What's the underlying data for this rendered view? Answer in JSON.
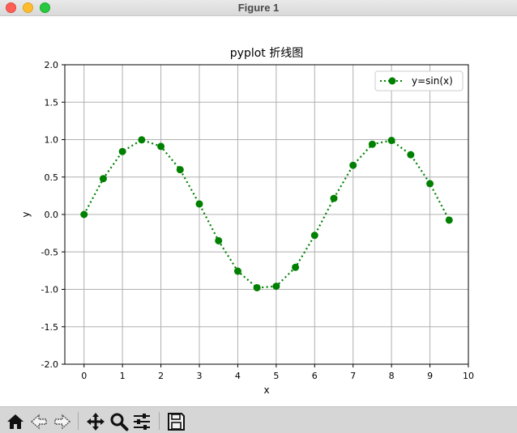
{
  "window": {
    "title": "Figure 1"
  },
  "toolbar": {
    "buttons": [
      {
        "name": "home-icon"
      },
      {
        "name": "back-icon"
      },
      {
        "name": "forward-icon"
      },
      {
        "name": "pan-icon"
      },
      {
        "name": "zoom-icon"
      },
      {
        "name": "configure-subplots-icon"
      },
      {
        "name": "save-icon"
      }
    ]
  },
  "chart_data": {
    "type": "line",
    "title": "pyplot 折线图",
    "xlabel": "x",
    "ylabel": "y",
    "xlim": [
      -0.5,
      10
    ],
    "ylim": [
      -2.0,
      2.0
    ],
    "xticks": [
      0,
      1,
      2,
      3,
      4,
      5,
      6,
      7,
      8,
      9,
      10
    ],
    "yticks": [
      2.0,
      1.5,
      1.0,
      0.5,
      0.0,
      -0.5,
      -1.0,
      -1.5,
      -2.0
    ],
    "xtick_labels": [
      "0",
      "1",
      "2",
      "3",
      "4",
      "5",
      "6",
      "7",
      "8",
      "9",
      "10"
    ],
    "ytick_labels": [
      "2.0",
      "1.5",
      "1.0",
      "0.5",
      "0.0",
      "-0.5",
      "-1.0",
      "-1.5",
      "-2.0"
    ],
    "grid": true,
    "legend": {
      "placement": "top-right"
    },
    "series": [
      {
        "name": "y=sin(x)",
        "color": "#008000",
        "linestyle": "dotted",
        "marker": "circle",
        "x": [
          0,
          0.5,
          1.0,
          1.5,
          2.0,
          2.5,
          3.0,
          3.5,
          4.0,
          4.5,
          5.0,
          5.5,
          6.0,
          6.5,
          7.0,
          7.5,
          8.0,
          8.5,
          9.0,
          9.5
        ],
        "y": [
          0.0,
          0.479,
          0.841,
          0.997,
          0.909,
          0.598,
          0.141,
          -0.351,
          -0.757,
          -0.978,
          -0.959,
          -0.706,
          -0.279,
          0.215,
          0.657,
          0.938,
          0.989,
          0.798,
          0.412,
          -0.075
        ]
      }
    ]
  }
}
